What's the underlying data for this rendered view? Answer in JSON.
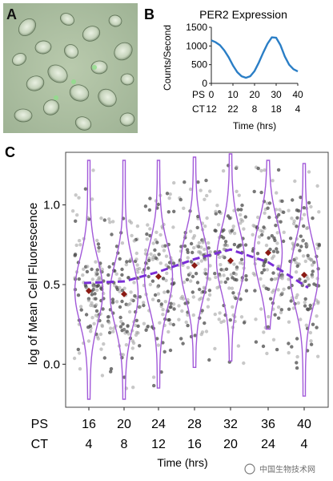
{
  "panels": {
    "a": {
      "letter": "A"
    },
    "b": {
      "letter": "B"
    },
    "c": {
      "letter": "C"
    }
  },
  "colors": {
    "line_blue": "#2a7ec6",
    "violin": "#a259d9",
    "mean_marker": "#8b1a14",
    "trend": "#7a2fd6",
    "points": "#6f6f6f"
  },
  "chart_data": [
    {
      "id": "panel-b",
      "type": "line",
      "title": "PER2 Expression",
      "ylabel": "Counts/Second",
      "xlabel": "Time (hrs)",
      "ylim": [
        0,
        1500
      ],
      "yticks": [
        0,
        500,
        1000,
        1500
      ],
      "xticks": [
        0,
        10,
        20,
        30,
        40
      ],
      "xlim": [
        0,
        40
      ],
      "secondary_rows": [
        {
          "label": "PS",
          "values": [
            "0",
            "10",
            "20",
            "30",
            "40"
          ]
        },
        {
          "label": "CT",
          "values": [
            "12",
            "22",
            "8",
            "18",
            "4"
          ]
        }
      ],
      "series": [
        {
          "x": [
            0,
            2,
            4,
            6,
            8,
            10,
            12,
            14,
            16,
            18,
            20,
            22,
            24,
            26,
            28,
            30,
            32,
            34,
            36,
            38,
            40
          ],
          "y": [
            1150,
            1100,
            1020,
            880,
            700,
            480,
            300,
            190,
            150,
            190,
            330,
            560,
            820,
            1060,
            1230,
            1220,
            1020,
            720,
            500,
            380,
            320
          ]
        }
      ]
    },
    {
      "id": "panel-c",
      "type": "scatter",
      "ylabel": "log of Mean Cell Fluorescence",
      "xlabel": "Time (hrs)",
      "ylim": [
        -0.25,
        1.3
      ],
      "yticks": [
        0.0,
        0.5,
        1.0
      ],
      "secondary_rows": [
        {
          "label": "PS",
          "values": [
            "16",
            "20",
            "24",
            "28",
            "32",
            "36",
            "40"
          ]
        },
        {
          "label": "CT",
          "values": [
            "4",
            "8",
            "12",
            "16",
            "20",
            "24",
            "4"
          ]
        }
      ],
      "categories": [
        "16",
        "20",
        "24",
        "28",
        "32",
        "36",
        "40"
      ],
      "means": [
        0.46,
        0.44,
        0.55,
        0.62,
        0.65,
        0.7,
        0.56
      ],
      "violin_range": [
        [
          -0.22,
          1.28
        ],
        [
          -0.22,
          1.28
        ],
        [
          -0.15,
          1.28
        ],
        [
          -0.02,
          1.3
        ],
        [
          0.02,
          1.32
        ],
        [
          0.22,
          1.28
        ],
        [
          -0.2,
          1.26
        ]
      ],
      "trend": [
        0.51,
        0.52,
        0.58,
        0.66,
        0.72,
        0.64,
        0.48
      ]
    }
  ],
  "watermark": "中国生物技术网"
}
